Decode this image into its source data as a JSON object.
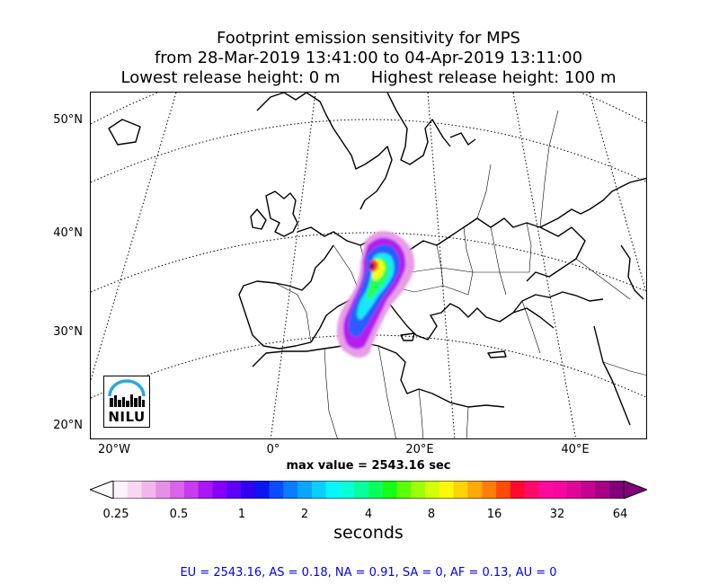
{
  "title": {
    "line1": "Footprint emission sensitivity for MPS",
    "line2": "from 28-Mar-2019 13:41:00 to 04-Apr-2019 13:11:00",
    "line3": "Lowest release height: 0 m      Highest release height: 100 m"
  },
  "map": {
    "lat_labels": [
      "50°N",
      "40°N",
      "30°N",
      "20°N"
    ],
    "lon_labels": [
      "20°W",
      "0°",
      "20°E",
      "40°E"
    ],
    "logo_text": "NILU"
  },
  "max_value": "max value = 2543.16 sec",
  "colorbar": {
    "ticks": [
      "0.25",
      "0.5",
      "1",
      "2",
      "4",
      "8",
      "16",
      "32",
      "64"
    ],
    "label": "seconds",
    "colors": [
      "#fff2fb",
      "#f9d6f2",
      "#f1b6ec",
      "#e68fe6",
      "#d964e9",
      "#c63cee",
      "#a917f2",
      "#8500f5",
      "#5c00f6",
      "#3300f4",
      "#0b17f0",
      "#0a4cff",
      "#0a7cff",
      "#0aa6ff",
      "#0acfff",
      "#0af5ff",
      "#0affd8",
      "#0aff9c",
      "#0aff5c",
      "#13ff13",
      "#5cff0a",
      "#9cff0a",
      "#d2ff0a",
      "#fff70a",
      "#ffd20a",
      "#ffa90a",
      "#ff7e0a",
      "#ff4b0a",
      "#ff0a2f",
      "#ff0a6a",
      "#ff0a9c",
      "#f5089f",
      "#de0698",
      "#c20490",
      "#a30285",
      "#82007a"
    ]
  },
  "stats": "EU = 2543.16,  AS = 0.18,  NA = 0.91,  SA = 0,  AF = 0.13,  AU = 0"
}
